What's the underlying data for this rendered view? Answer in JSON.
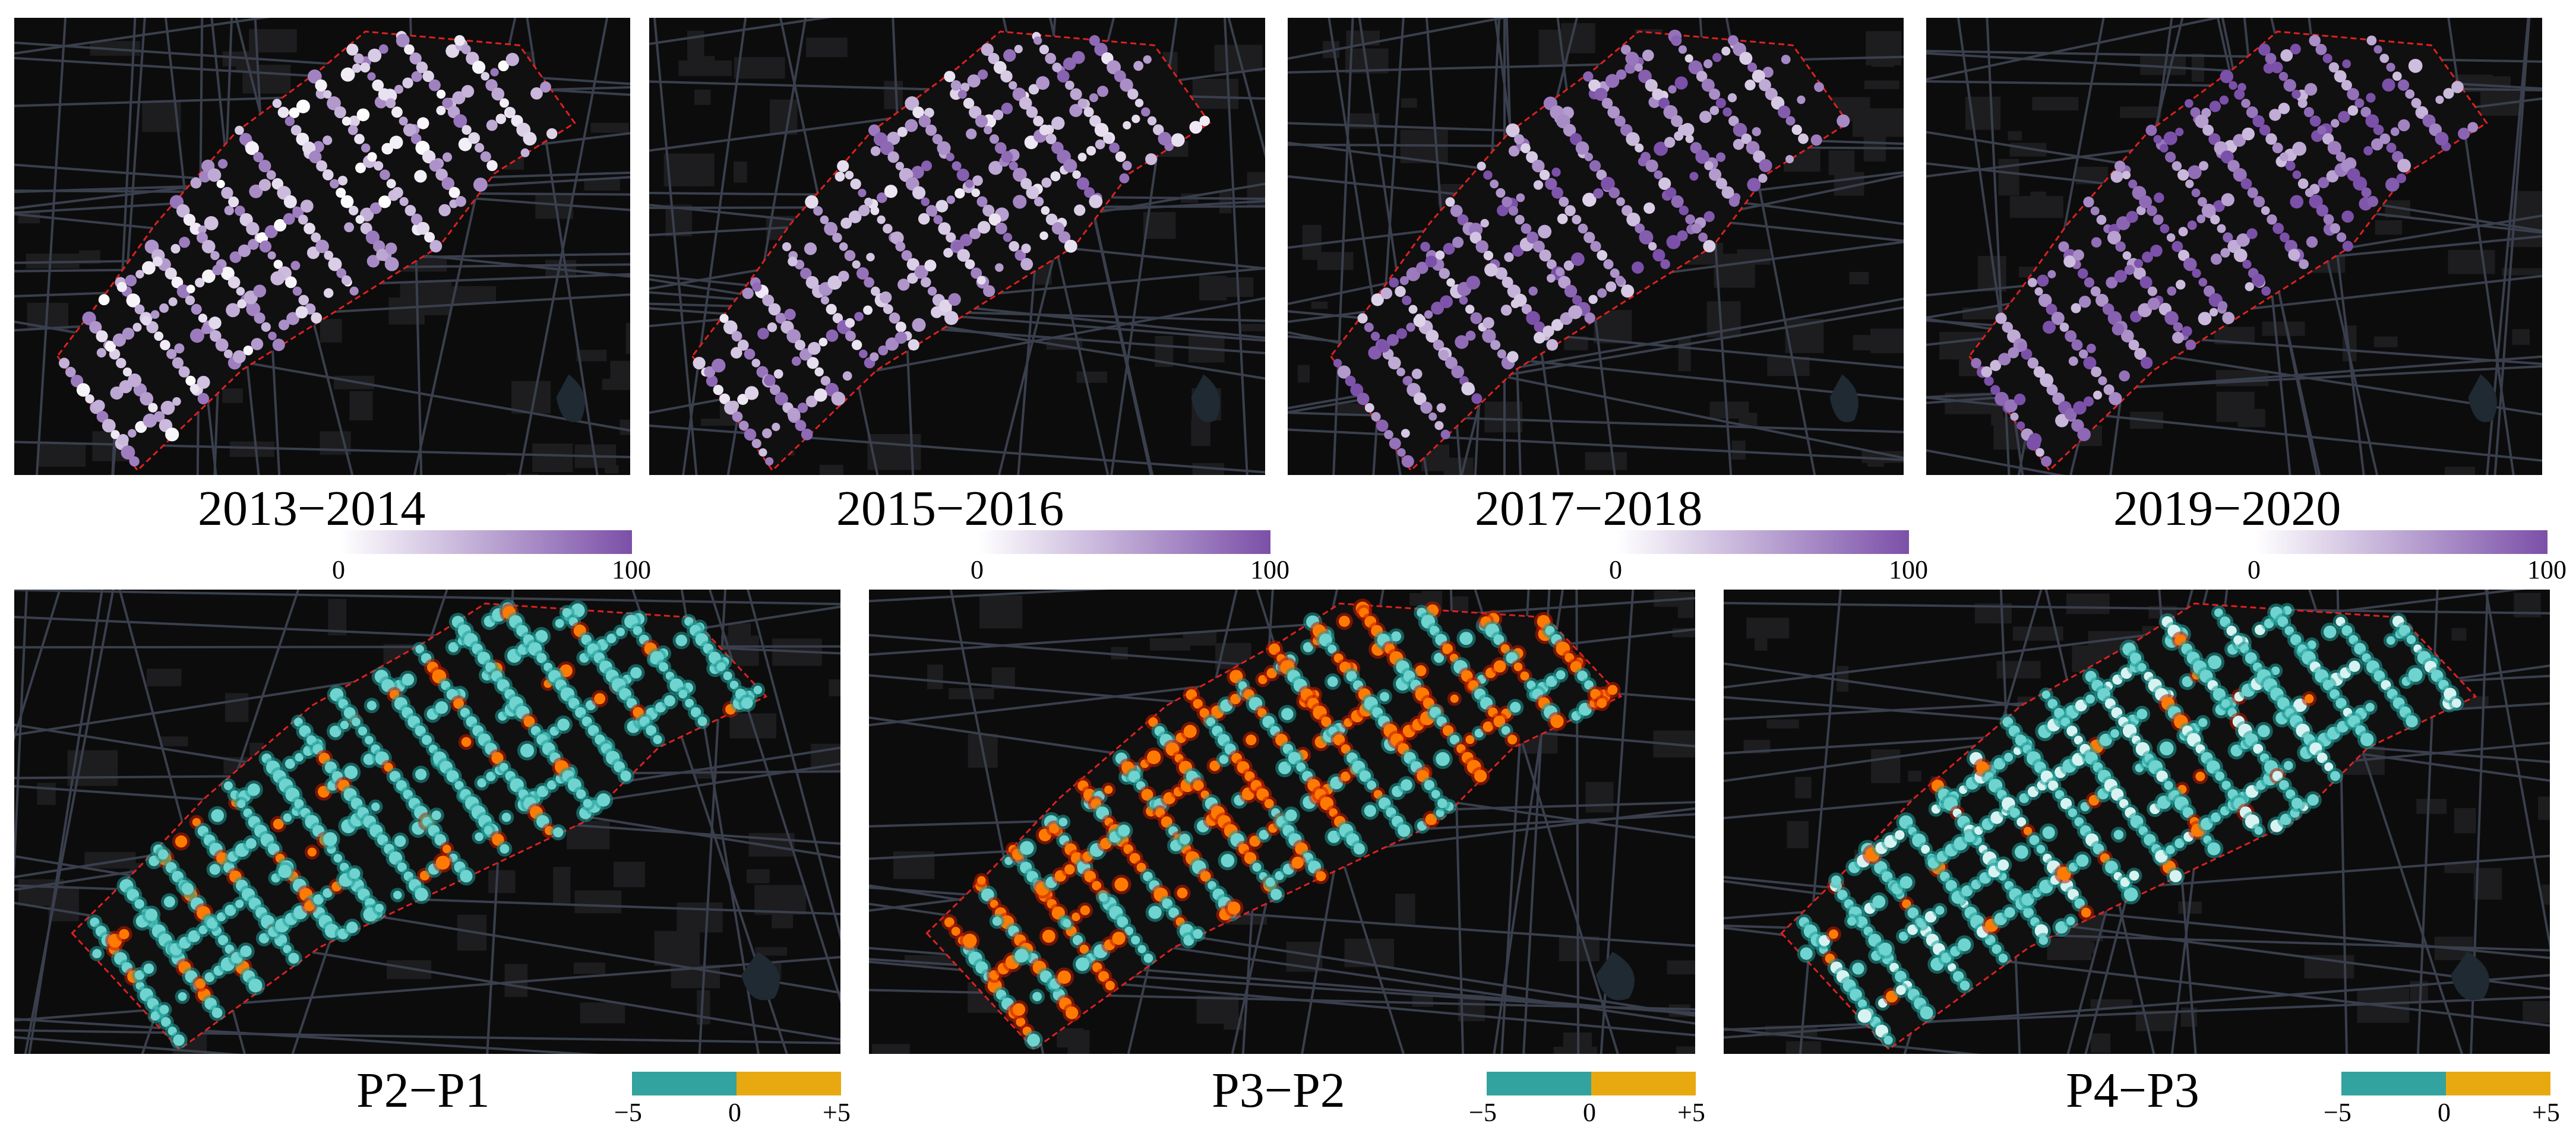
{
  "top_row": [
    {
      "title": "2013−2014",
      "scale_min": "0",
      "scale_max": "100"
    },
    {
      "title": "2015−2016",
      "scale_min": "0",
      "scale_max": "100"
    },
    {
      "title": "2017−2018",
      "scale_min": "0",
      "scale_max": "100"
    },
    {
      "title": "2019−2020",
      "scale_min": "0",
      "scale_max": "100"
    }
  ],
  "bottom_row": [
    {
      "title": "P2−P1",
      "scale_min": "−5",
      "scale_mid": "0",
      "scale_max": "+5"
    },
    {
      "title": "P3−P2",
      "scale_min": "−5",
      "scale_mid": "0",
      "scale_max": "+5"
    },
    {
      "title": "P4−P3",
      "scale_min": "−5",
      "scale_mid": "0",
      "scale_max": "+5"
    }
  ],
  "colors": {
    "map_background": "#0c0c0c",
    "road": "#3a3f4d",
    "boundary": "#e0201f",
    "score_low": "#ffffff",
    "score_high": "#7b50a8",
    "decrease": "#32a39e",
    "increase": "#e8a910"
  },
  "legends": {
    "top": {
      "type": "continuous",
      "range": [
        0,
        100
      ],
      "colors": [
        "#ffffff",
        "#7b50a8"
      ]
    },
    "bottom": {
      "type": "diverging",
      "range": [
        -5,
        5
      ],
      "colors": [
        "#32a39e",
        "#e8a910"
      ]
    }
  }
}
